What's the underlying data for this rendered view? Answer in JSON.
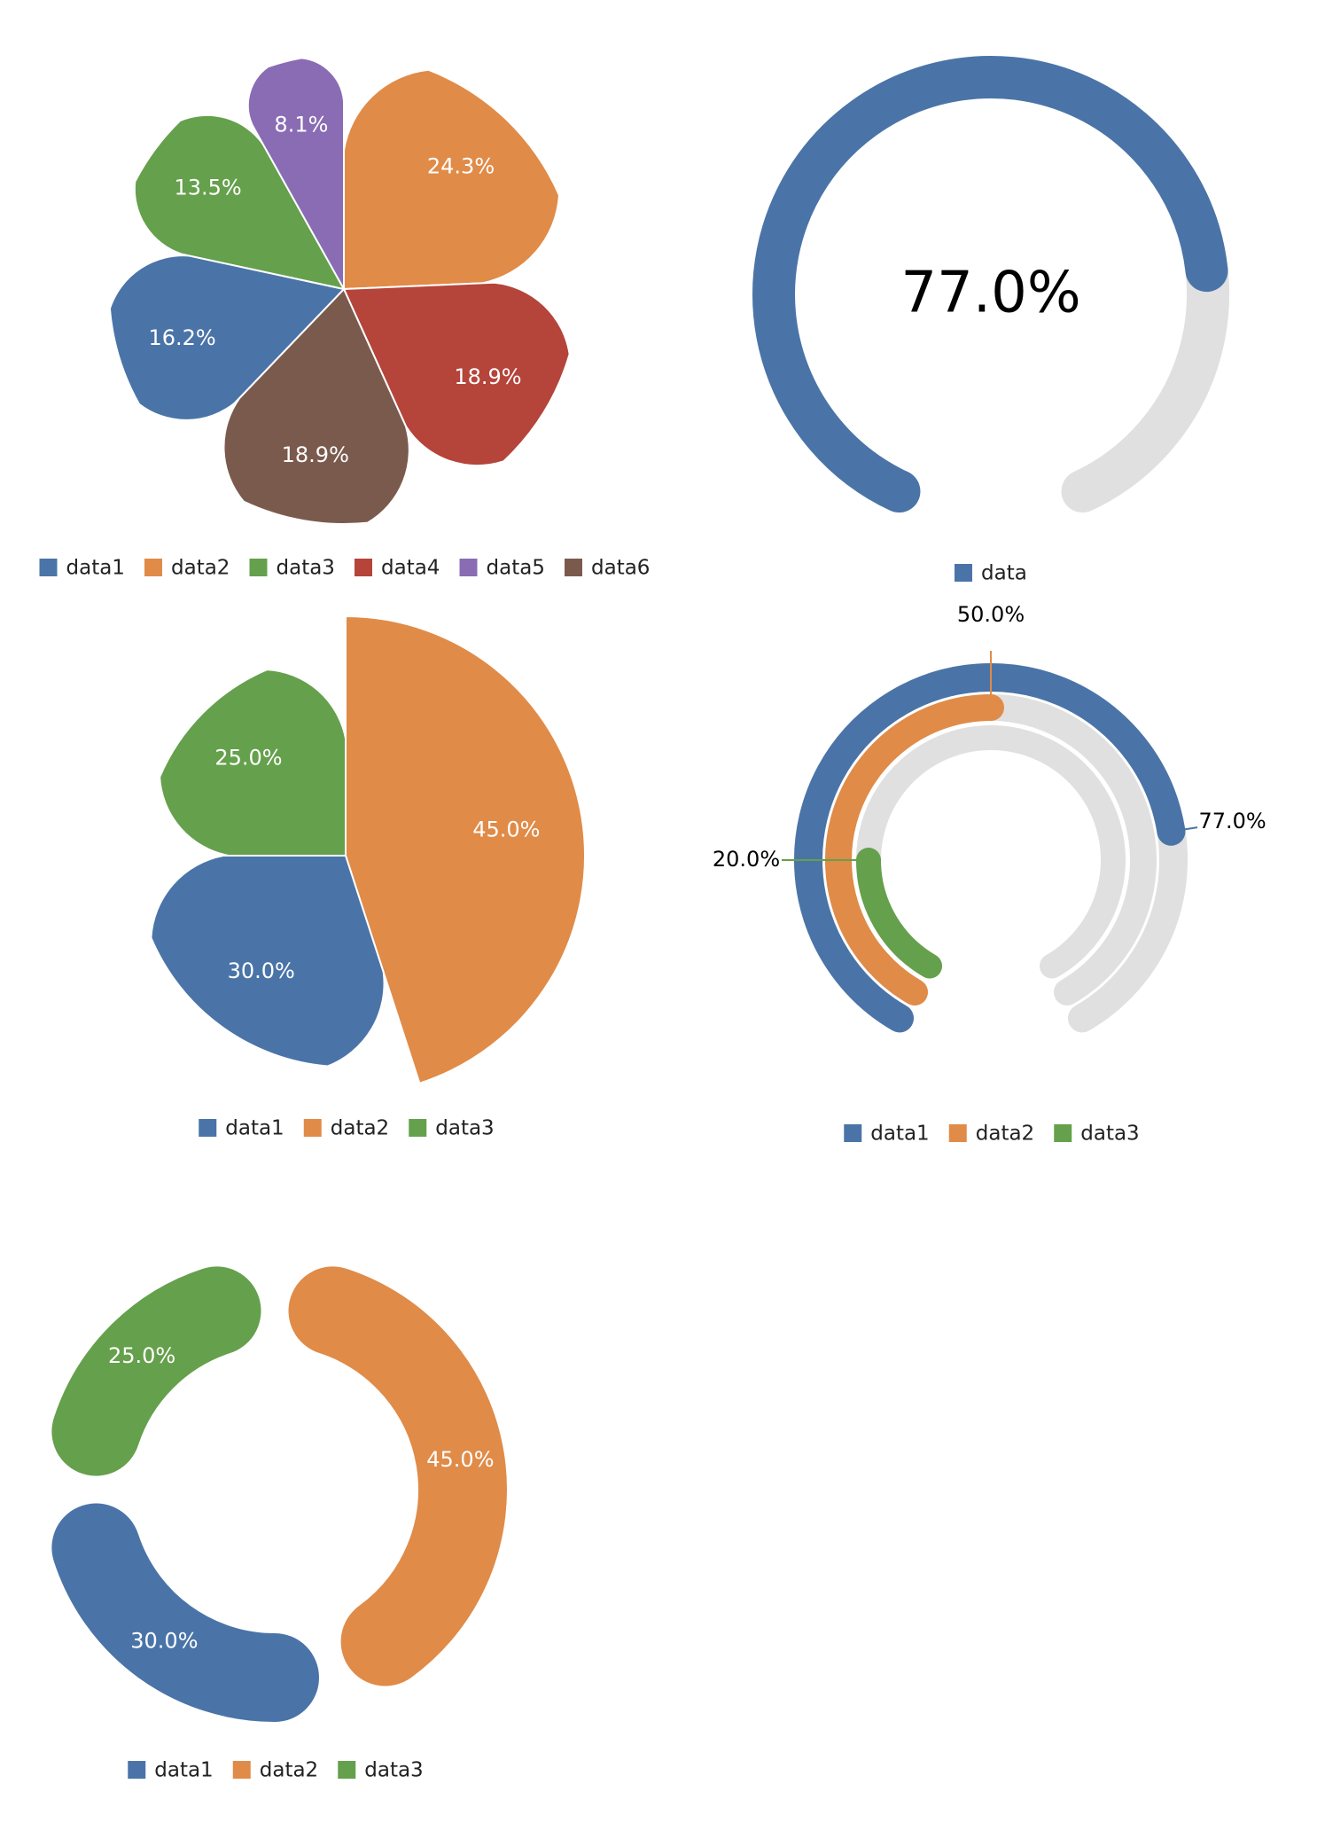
{
  "colors": {
    "data1": "#4a74a8",
    "data2": "#e08b48",
    "data3": "#65a04c",
    "data4": "#b5443a",
    "data5": "#8a6cb4",
    "data6": "#7b5a4e",
    "track": "#e0e0e0"
  },
  "chart_data": [
    {
      "type": "pie",
      "variant": "rounded-petal",
      "legend": [
        "data1",
        "data2",
        "data3",
        "data4",
        "data5",
        "data6"
      ],
      "slices": [
        {
          "name": "data2",
          "value": 24.3,
          "label": "24.3%"
        },
        {
          "name": "data4",
          "value": 18.9,
          "label": "18.9%"
        },
        {
          "name": "data6",
          "value": 18.9,
          "label": "18.9%"
        },
        {
          "name": "data1",
          "value": 16.2,
          "label": "16.2%"
        },
        {
          "name": "data3",
          "value": 13.5,
          "label": "13.5%"
        },
        {
          "name": "data5",
          "value": 8.1,
          "label": "8.1%"
        }
      ]
    },
    {
      "type": "gauge",
      "legend": [
        "data"
      ],
      "value": 77.0,
      "label": "77.0%"
    },
    {
      "type": "pie",
      "variant": "rounded-petal-radius-by-value",
      "legend": [
        "data1",
        "data2",
        "data3"
      ],
      "slices": [
        {
          "name": "data2",
          "value": 45.0,
          "label": "45.0%"
        },
        {
          "name": "data1",
          "value": 30.0,
          "label": "30.0%"
        },
        {
          "name": "data3",
          "value": 25.0,
          "label": "25.0%"
        }
      ]
    },
    {
      "type": "gauge",
      "variant": "multi-ring",
      "legend": [
        "data1",
        "data2",
        "data3"
      ],
      "series": [
        {
          "name": "data1",
          "value": 77.0,
          "label": "77.0%"
        },
        {
          "name": "data2",
          "value": 50.0,
          "label": "50.0%"
        },
        {
          "name": "data3",
          "value": 20.0,
          "label": "20.0%"
        }
      ]
    },
    {
      "type": "donut",
      "variant": "rounded-segments",
      "legend": [
        "data1",
        "data2",
        "data3"
      ],
      "slices": [
        {
          "name": "data2",
          "value": 45.0,
          "label": "45.0%"
        },
        {
          "name": "data1",
          "value": 30.0,
          "label": "30.0%"
        },
        {
          "name": "data3",
          "value": 25.0,
          "label": "25.0%"
        }
      ]
    }
  ]
}
